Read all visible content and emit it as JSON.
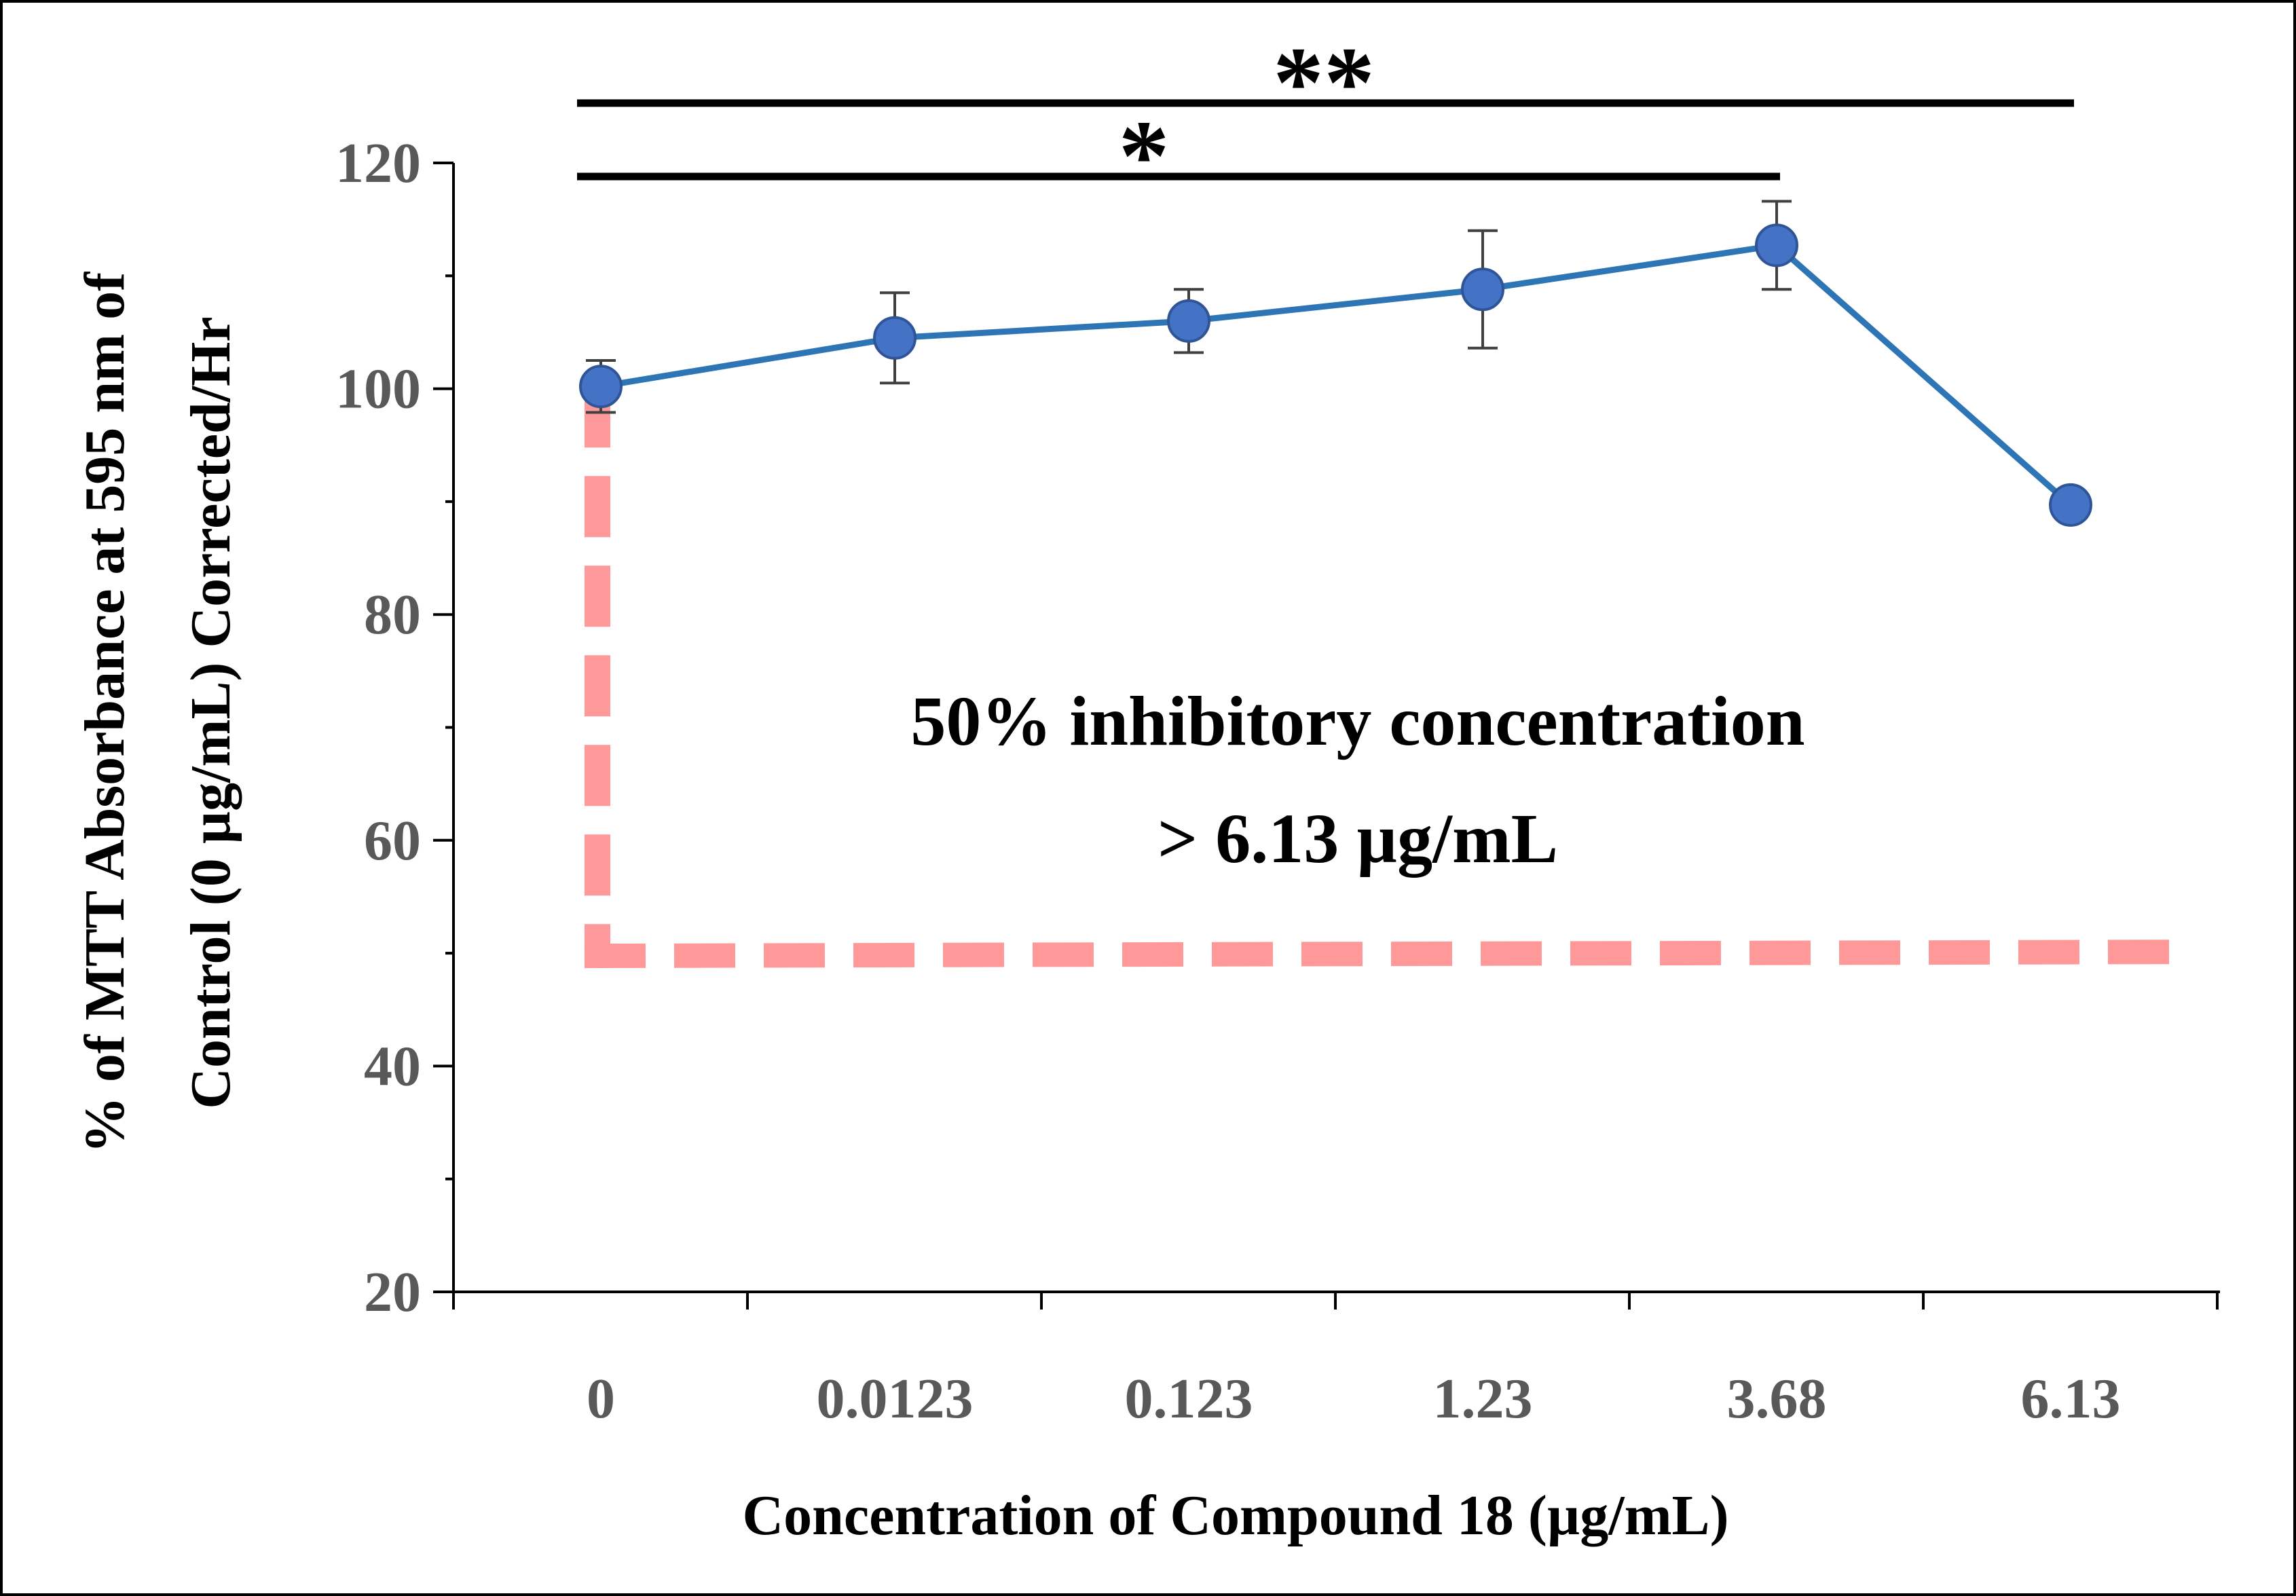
{
  "chart_data": {
    "type": "line",
    "title": "",
    "xlabel": "Concentration of Compound 18 (µg/mL)",
    "ylabel_lines": [
      "% of MTT Absorbance at 595 nm of",
      "Control (0 µg/mL)  Corrected/Hr"
    ],
    "categories": [
      "0",
      "0.0123",
      "0.123",
      "1.23",
      "3.68",
      "6.13"
    ],
    "series": [
      {
        "name": "MTT absorbance",
        "values": [
          100.2,
          104.5,
          106.0,
          108.8,
          112.7,
          89.7
        ],
        "error": [
          2.3,
          4.0,
          2.8,
          5.2,
          3.9,
          0
        ],
        "color": "#2E75B6"
      }
    ],
    "ylim": [
      20,
      120
    ],
    "yticks": [
      "20",
      "40",
      "60",
      "80",
      "100",
      "120"
    ],
    "y_values_for_ticks": [
      20,
      40,
      60,
      80,
      100,
      120
    ],
    "grid": false,
    "reference_line": {
      "y": 50,
      "x_category": "0",
      "color": "#FF9999",
      "style": "dashed"
    },
    "annotation": {
      "line1": "50% inhibitory concentration",
      "line2": "> 6.13 µg/mL"
    },
    "significance": [
      {
        "label": "*",
        "from": "0",
        "to": "3.68",
        "level": 118.8
      },
      {
        "label": "**",
        "from": "0",
        "to": "6.13",
        "level": 125.3
      }
    ]
  }
}
